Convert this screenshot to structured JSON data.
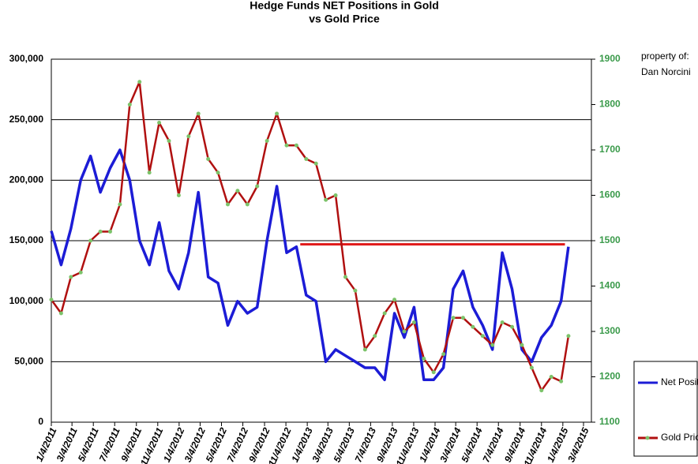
{
  "chart_data": {
    "type": "line",
    "title": [
      "Hedge Funds NET Positions in Gold",
      "vs Gold Price"
    ],
    "annotations": [
      "property of:",
      "Dan Norcini"
    ],
    "x": [
      "1/4/2011",
      "2/1/2011",
      "3/1/2011",
      "3/29/2011",
      "4/26/2011",
      "5/24/2011",
      "6/21/2011",
      "7/19/2011",
      "8/16/2011",
      "9/13/2011",
      "10/11/2011",
      "11/8/2011",
      "12/6/2011",
      "1/3/2012",
      "1/31/2012",
      "2/28/2012",
      "3/27/2012",
      "4/24/2012",
      "5/22/2012",
      "6/19/2012",
      "7/17/2012",
      "8/14/2012",
      "9/11/2012",
      "10/9/2012",
      "11/6/2012",
      "12/4/2012",
      "1/1/2013",
      "1/29/2013",
      "2/26/2013",
      "3/26/2013",
      "4/23/2013",
      "5/21/2013",
      "6/18/2013",
      "7/16/2013",
      "8/13/2013",
      "9/10/2013",
      "10/8/2013",
      "11/5/2013",
      "12/3/2013",
      "12/31/2013",
      "1/28/2014",
      "2/25/2014",
      "3/25/2014",
      "4/22/2014",
      "5/20/2014",
      "6/17/2014",
      "7/15/2014",
      "8/12/2014",
      "9/9/2014",
      "10/7/2014",
      "11/4/2014",
      "12/2/2014",
      "12/30/2014",
      "1/20/2015"
    ],
    "series": [
      {
        "name": "Net Position",
        "color": "#1c1cd6",
        "axis": "y",
        "values": [
          158000,
          130000,
          160000,
          200000,
          220000,
          190000,
          210000,
          225000,
          200000,
          150000,
          130000,
          165000,
          125000,
          110000,
          140000,
          190000,
          120000,
          115000,
          80000,
          100000,
          90000,
          95000,
          150000,
          195000,
          140000,
          145000,
          105000,
          100000,
          50000,
          60000,
          55000,
          50000,
          45000,
          45000,
          35000,
          90000,
          70000,
          95000,
          35000,
          35000,
          45000,
          110000,
          125000,
          95000,
          80000,
          60000,
          140000,
          110000,
          60000,
          50000,
          70000,
          80000,
          100000,
          145000
        ]
      },
      {
        "name": "Gold Price",
        "color": "#b01010",
        "marker_color": "#7cc36a",
        "axis": "y2",
        "values": [
          1370,
          1340,
          1420,
          1430,
          1500,
          1520,
          1520,
          1580,
          1800,
          1850,
          1650,
          1760,
          1720,
          1600,
          1730,
          1780,
          1680,
          1650,
          1580,
          1610,
          1580,
          1620,
          1720,
          1780,
          1710,
          1710,
          1680,
          1670,
          1590,
          1600,
          1420,
          1390,
          1260,
          1290,
          1340,
          1370,
          1300,
          1320,
          1240,
          1210,
          1250,
          1330,
          1330,
          1310,
          1290,
          1270,
          1320,
          1310,
          1270,
          1220,
          1170,
          1200,
          1190,
          1290
        ]
      }
    ],
    "reference_line": {
      "value": 147000,
      "x": [
        "12/15/2012",
        "1/10/2015"
      ],
      "color": "#e01818"
    },
    "xlim": [
      "1/4/2011",
      "3/4/2015"
    ],
    "xticks": [
      "1/4/2011",
      "3/4/2011",
      "5/4/2011",
      "7/4/2011",
      "9/4/2011",
      "11/4/2011",
      "1/4/2012",
      "3/4/2012",
      "5/4/2012",
      "7/4/2012",
      "9/4/2012",
      "11/4/2012",
      "1/4/2013",
      "3/4/2013",
      "5/4/2013",
      "7/4/2013",
      "9/4/2013",
      "11/4/2013",
      "1/4/2014",
      "3/4/2014",
      "5/4/2014",
      "7/4/2014",
      "9/4/2014",
      "11/4/2014",
      "1/4/2015",
      "3/4/2015"
    ],
    "ylim": [
      0,
      300000
    ],
    "yticks": [
      0,
      {
        "value": 50000,
        "label": "50,000"
      },
      {
        "value": 100000,
        "label": "100,000"
      },
      {
        "value": 150000,
        "label": "150,000"
      },
      {
        "value": 200000,
        "label": "200,000"
      },
      {
        "value": 250000,
        "label": "250,000"
      },
      {
        "value": 300000,
        "label": "300,000"
      }
    ],
    "y2lim": [
      1100,
      1900
    ],
    "y2ticks": [
      1100,
      1200,
      1300,
      1400,
      1500,
      1600,
      1700,
      1800,
      1900
    ],
    "y2_color": "#3a9a4a",
    "grid": true
  }
}
